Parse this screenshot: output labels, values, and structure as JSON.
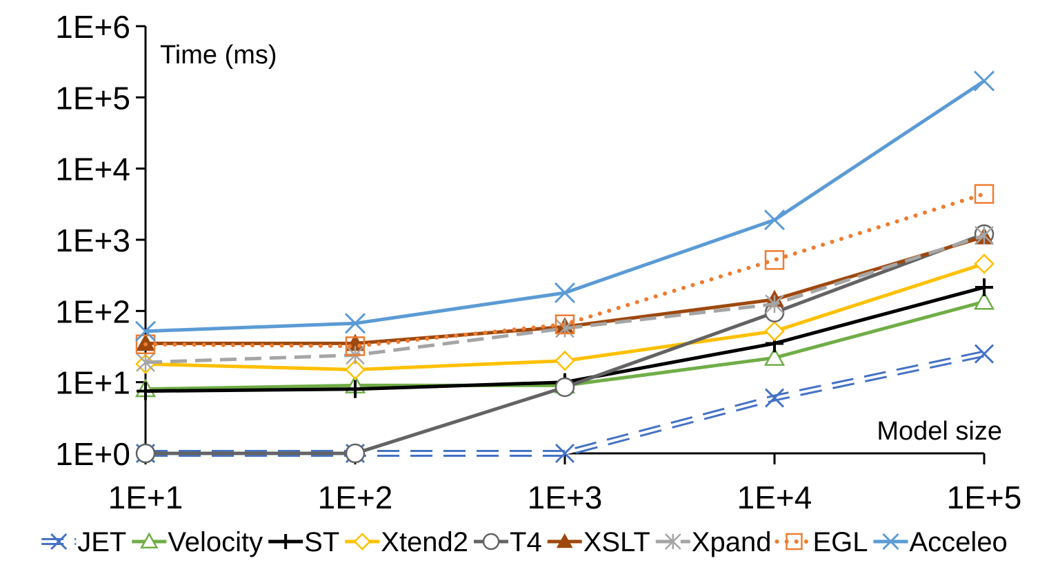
{
  "chart_data": {
    "type": "line",
    "title": "",
    "xlabel": "Model size",
    "ylabel": "Time (ms)",
    "x_scale": "log",
    "y_scale": "log",
    "x": [
      10,
      100,
      1000,
      10000,
      100000
    ],
    "x_tick_labels": [
      "1E+1",
      "1E+2",
      "1E+3",
      "1E+4",
      "1E+5"
    ],
    "y_tick_labels": [
      "1E+0",
      "1E+1",
      "1E+2",
      "1E+3",
      "1E+4",
      "1E+5",
      "1E+6"
    ],
    "xlim": [
      10,
      100000
    ],
    "ylim": [
      1,
      1000000
    ],
    "grid": false,
    "legend_position": "bottom",
    "series": [
      {
        "name": "JET",
        "values": [
          1,
          1,
          1,
          6,
          25
        ],
        "color": "#4472C4",
        "style": "double-dash",
        "marker": "x"
      },
      {
        "name": "Velocity",
        "values": [
          8,
          9,
          9,
          22,
          135
        ],
        "color": "#70AD47",
        "style": "solid",
        "marker": "triangle-open"
      },
      {
        "name": "ST",
        "values": [
          7.5,
          8,
          10,
          35,
          215
        ],
        "color": "#000000",
        "style": "solid",
        "marker": "plus"
      },
      {
        "name": "Xtend2",
        "values": [
          18,
          15,
          20,
          52,
          460
        ],
        "color": "#FFC000",
        "style": "solid",
        "marker": "diamond-open"
      },
      {
        "name": "T4",
        "values": [
          1,
          1,
          8.5,
          95,
          1200
        ],
        "color": "#636363",
        "style": "solid",
        "marker": "circle-open"
      },
      {
        "name": "XSLT",
        "values": [
          35,
          35,
          60,
          145,
          1100
        ],
        "color": "#9E480E",
        "style": "solid",
        "marker": "triangle-filled"
      },
      {
        "name": "Xpand",
        "values": [
          19,
          24,
          57,
          125,
          1150
        ],
        "color": "#A5A5A5",
        "style": "dashed",
        "marker": "asterisk"
      },
      {
        "name": "EGL",
        "values": [
          34,
          32,
          65,
          520,
          4400
        ],
        "color": "#ED7D31",
        "style": "dotted",
        "marker": "square-open"
      },
      {
        "name": "Acceleo",
        "values": [
          52,
          67,
          180,
          1900,
          170000
        ],
        "color": "#5B9BD5",
        "style": "solid",
        "marker": "x"
      }
    ]
  }
}
